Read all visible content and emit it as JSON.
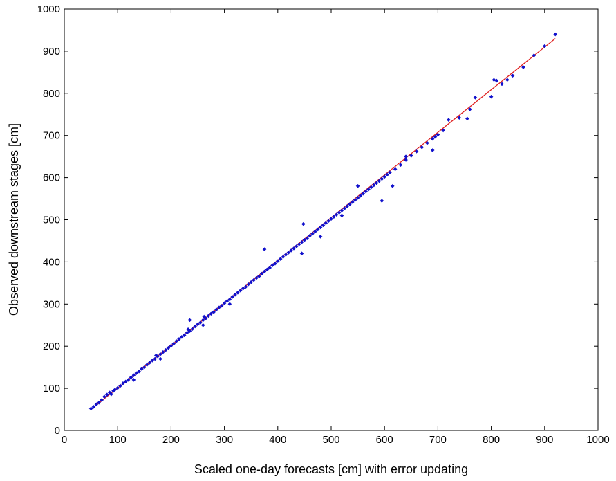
{
  "chart_data": {
    "type": "scatter",
    "title": "",
    "xlabel": "Scaled one-day forecasts [cm] with error updating",
    "ylabel": "Observed downstream stages [cm]",
    "xlim": [
      0,
      1000
    ],
    "ylim": [
      0,
      1000
    ],
    "xticks": [
      0,
      100,
      200,
      300,
      400,
      500,
      600,
      700,
      800,
      900,
      1000
    ],
    "yticks": [
      0,
      100,
      200,
      300,
      400,
      500,
      600,
      700,
      800,
      900,
      1000
    ],
    "grid": false,
    "legend": "none",
    "series": [
      {
        "kind": "points",
        "color": "#1010cc",
        "marker": "diamond",
        "x": [
          50,
          55,
          60,
          65,
          70,
          75,
          80,
          85,
          88,
          92,
          95,
          100,
          105,
          110,
          115,
          120,
          125,
          130,
          135,
          140,
          145,
          150,
          155,
          160,
          165,
          170,
          172,
          175,
          180,
          185,
          190,
          195,
          200,
          205,
          210,
          215,
          220,
          225,
          230,
          232,
          235,
          240,
          245,
          250,
          255,
          260,
          262,
          265,
          270,
          275,
          280,
          285,
          290,
          295,
          300,
          305,
          310,
          315,
          320,
          325,
          330,
          335,
          340,
          345,
          350,
          355,
          360,
          365,
          370,
          375,
          380,
          385,
          390,
          395,
          400,
          405,
          410,
          415,
          420,
          425,
          430,
          435,
          440,
          445,
          448,
          450,
          455,
          460,
          465,
          470,
          475,
          480,
          485,
          490,
          495,
          500,
          505,
          510,
          515,
          520,
          525,
          530,
          535,
          540,
          545,
          550,
          555,
          560,
          565,
          570,
          575,
          580,
          585,
          590,
          595,
          600,
          605,
          610,
          620,
          630,
          640,
          650,
          660,
          670,
          680,
          690,
          695,
          700,
          710,
          720,
          740,
          760,
          770,
          800,
          805,
          810,
          820,
          830,
          840,
          860,
          880,
          900,
          920,
          235,
          375,
          595,
          615,
          690,
          755,
          640,
          445,
          550,
          480,
          310,
          260,
          180,
          130,
          520
        ],
        "y": [
          52,
          56,
          62,
          66,
          72,
          80,
          85,
          90,
          86,
          94,
          97,
          101,
          106,
          112,
          116,
          120,
          126,
          131,
          136,
          140,
          146,
          150,
          156,
          161,
          166,
          170,
          178,
          176,
          181,
          186,
          191,
          196,
          201,
          206,
          212,
          217,
          222,
          226,
          232,
          240,
          236,
          241,
          247,
          252,
          256,
          262,
          270,
          266,
          272,
          277,
          281,
          287,
          292,
          296,
          302,
          307,
          311,
          317,
          322,
          327,
          332,
          337,
          341,
          347,
          352,
          357,
          362,
          366,
          372,
          377,
          382,
          386,
          392,
          396,
          402,
          407,
          412,
          417,
          422,
          427,
          432,
          437,
          442,
          447,
          490,
          452,
          456,
          462,
          467,
          472,
          477,
          482,
          487,
          492,
          497,
          502,
          507,
          512,
          517,
          522,
          527,
          532,
          537,
          542,
          547,
          552,
          557,
          562,
          567,
          572,
          577,
          582,
          587,
          592,
          597,
          602,
          607,
          612,
          620,
          630,
          642,
          652,
          662,
          672,
          682,
          692,
          697,
          702,
          712,
          737,
          742,
          762,
          790,
          792,
          832,
          830,
          822,
          832,
          842,
          862,
          890,
          912,
          940,
          262,
          430,
          545,
          580,
          665,
          740,
          650,
          420,
          580,
          460,
          300,
          250,
          170,
          120,
          510
        ]
      },
      {
        "kind": "fit-line",
        "color": "#e02020",
        "x": [
          50,
          920
        ],
        "y": [
          50,
          930
        ]
      }
    ]
  }
}
